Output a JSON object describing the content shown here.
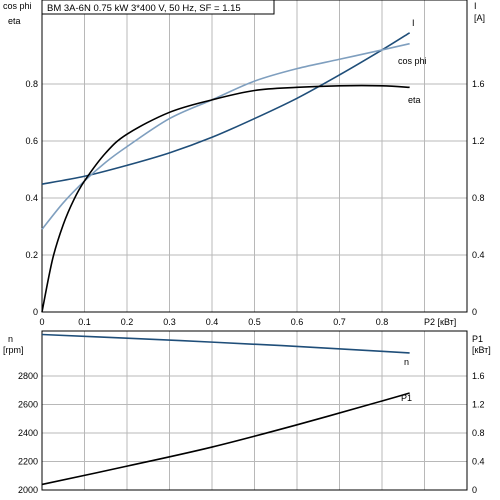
{
  "title": "BM 3A-6N   0.75 kW   3*400 V, 50 Hz, SF = 1.15",
  "colors": {
    "I": "#1f4e79",
    "cos phi": "#7f9fbf",
    "eta": "#000000",
    "n": "#1f4e79",
    "P1": "#000000"
  },
  "chart_data": [
    {
      "type": "line",
      "xlabel": "P2 [кВт]",
      "xlim": [
        0,
        1.0
      ],
      "x_ticks": [
        "0",
        "0.1",
        "0.2",
        "0.3",
        "0.4",
        "0.5",
        "0.6",
        "0.7",
        "0.8"
      ],
      "left_axis": {
        "label_top": "cos phi",
        "label_bottom": "eta",
        "ylim": [
          0,
          1.0
        ],
        "ticks": [
          "0",
          "0.2",
          "0.4",
          "0.6",
          "0.8"
        ]
      },
      "right_axis": {
        "label_top": "I",
        "label_bottom": "[A]",
        "ylim": [
          0,
          2.0
        ],
        "ticks": [
          "0",
          "0.4",
          "0.8",
          "1.2",
          "1.6"
        ]
      },
      "grid": true,
      "series": [
        {
          "name": "I",
          "axis": "right",
          "x": [
            0,
            0.1,
            0.2,
            0.3,
            0.4,
            0.5,
            0.6,
            0.7,
            0.8,
            0.865
          ],
          "y": [
            0.82,
            0.87,
            0.94,
            1.02,
            1.12,
            1.24,
            1.37,
            1.52,
            1.68,
            1.79
          ]
        },
        {
          "name": "cos phi",
          "axis": "left",
          "x": [
            0,
            0.05,
            0.1,
            0.15,
            0.2,
            0.3,
            0.4,
            0.5,
            0.6,
            0.7,
            0.8,
            0.865
          ],
          "y": [
            0.265,
            0.35,
            0.42,
            0.48,
            0.53,
            0.62,
            0.68,
            0.74,
            0.78,
            0.81,
            0.84,
            0.86
          ]
        },
        {
          "name": "eta",
          "axis": "left",
          "x": [
            0,
            0.025,
            0.05,
            0.075,
            0.1,
            0.15,
            0.2,
            0.3,
            0.4,
            0.5,
            0.6,
            0.7,
            0.8,
            0.865
          ],
          "y": [
            0,
            0.17,
            0.28,
            0.36,
            0.42,
            0.51,
            0.57,
            0.64,
            0.68,
            0.71,
            0.72,
            0.725,
            0.725,
            0.72
          ]
        }
      ]
    },
    {
      "type": "line",
      "xlim": [
        0,
        1.0
      ],
      "left_axis": {
        "label_top": "n",
        "label_bottom": "[rpm]",
        "ylim": [
          2000,
          3000
        ],
        "ticks": [
          "2000",
          "2200",
          "2400",
          "2600",
          "2800"
        ]
      },
      "right_axis": {
        "label_top": "P1",
        "label_bottom": "[кВт]",
        "ylim": [
          0,
          2.0
        ],
        "ticks": [
          "0",
          "0.4",
          "0.8",
          "1.2",
          "1.6"
        ]
      },
      "grid": true,
      "series": [
        {
          "name": "n",
          "axis": "left",
          "x": [
            0,
            0.2,
            0.4,
            0.6,
            0.8,
            0.865
          ],
          "y": [
            2978,
            2955,
            2930,
            2903,
            2872,
            2862
          ]
        },
        {
          "name": "P1",
          "axis": "right",
          "x": [
            0,
            0.2,
            0.4,
            0.6,
            0.8,
            0.865
          ],
          "y": [
            0.07,
            0.3,
            0.54,
            0.82,
            1.12,
            1.22
          ]
        }
      ]
    }
  ]
}
